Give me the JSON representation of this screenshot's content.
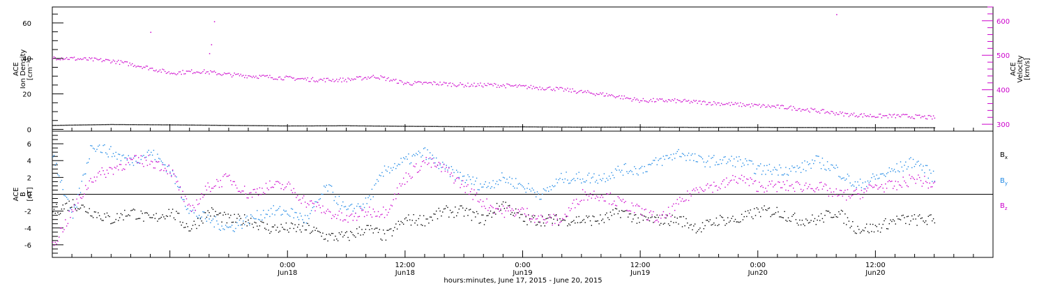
{
  "chart_data": [
    {
      "type": "scatter",
      "panel": "ace-density-velocity",
      "ylabel": [
        "ACE",
        "Ion Density",
        "[cm⁻³]"
      ],
      "ylim": [
        -1,
        69
      ],
      "yticks": [
        0,
        20,
        40,
        60
      ],
      "ylabel_right": [
        "ACE",
        "Velocity",
        "[km/s]"
      ],
      "ylim_right": [
        280,
        640
      ],
      "yticks_right": [
        300,
        400,
        500,
        600
      ],
      "series": [
        {
          "name": "",
          "axis": "left",
          "color": "#000000",
          "x": [
            0,
            6,
            12,
            18,
            24,
            30,
            36,
            42,
            48,
            54,
            60,
            66,
            72,
            78,
            84,
            90
          ],
          "y": [
            2.5,
            3.0,
            2.8,
            2.5,
            2.2,
            2.3,
            2.0,
            1.8,
            1.7,
            1.5,
            1.5,
            1.4,
            1.4,
            1.3,
            1.2,
            1.2
          ]
        },
        {
          "name": "",
          "axis": "right",
          "color": "#cc00cc",
          "x": [
            0,
            3,
            6,
            9,
            12,
            15,
            18,
            21,
            24,
            27,
            30,
            33,
            36,
            39,
            42,
            45,
            48,
            51,
            54,
            57,
            60,
            63,
            66,
            69,
            72,
            75,
            78,
            81,
            84,
            87,
            90
          ],
          "y": [
            495,
            490,
            485,
            470,
            450,
            455,
            445,
            440,
            435,
            430,
            430,
            440,
            420,
            420,
            415,
            415,
            410,
            405,
            395,
            385,
            370,
            370,
            365,
            360,
            355,
            350,
            340,
            330,
            325,
            325,
            320
          ]
        }
      ],
      "outliers": [
        {
          "x": 10,
          "y": 55
        },
        {
          "x": 16.5,
          "y": 61
        },
        {
          "x": 16,
          "y": 43
        },
        {
          "x": 16.2,
          "y": 48
        },
        {
          "x": 80,
          "y": 65
        }
      ]
    },
    {
      "type": "scatter",
      "panel": "ace-b",
      "ylabel": [
        "ACE",
        "B",
        "[nT]"
      ],
      "ylim": [
        -7.5,
        7.5
      ],
      "yticks": [
        -6,
        -4,
        -2,
        0,
        2,
        4,
        6
      ],
      "series": [
        {
          "name": "B",
          "sub": "x",
          "color": "#000000",
          "x": [
            0,
            2,
            4,
            6,
            8,
            10,
            12,
            14,
            16,
            18,
            20,
            22,
            24,
            26,
            28,
            30,
            32,
            34,
            36,
            38,
            40,
            42,
            44,
            46,
            48,
            50,
            52,
            54,
            56,
            58,
            60,
            62,
            64,
            66,
            68,
            70,
            72,
            74,
            76,
            78,
            80,
            82,
            84,
            86,
            88,
            90
          ],
          "y": [
            -2,
            -1,
            -2,
            -3,
            -2,
            -3,
            -2,
            -4,
            -2,
            -3,
            -3,
            -4,
            -4,
            -4,
            -5,
            -5,
            -4,
            -5,
            -3,
            -3,
            -2,
            -2,
            -3,
            -1,
            -3,
            -3,
            -3,
            -3,
            -3,
            -2,
            -3,
            -3,
            -3,
            -4,
            -3,
            -3,
            -2,
            -2,
            -3,
            -3,
            -2,
            -4,
            -4,
            -3,
            -3,
            -3
          ]
        },
        {
          "name": "B",
          "sub": "y",
          "color": "#1e88e5",
          "x": [
            0,
            2,
            4,
            6,
            8,
            10,
            12,
            14,
            16,
            18,
            20,
            22,
            24,
            26,
            28,
            30,
            32,
            34,
            36,
            38,
            40,
            42,
            44,
            46,
            48,
            50,
            52,
            54,
            56,
            58,
            60,
            62,
            64,
            66,
            68,
            70,
            72,
            74,
            76,
            78,
            80,
            82,
            84,
            86,
            88,
            90
          ],
          "y": [
            5,
            -3,
            6,
            5,
            4,
            5,
            3,
            -2,
            -3,
            -4,
            -3,
            -2,
            -2,
            -3,
            1,
            -2,
            -1,
            3,
            4,
            5,
            3,
            2,
            1,
            2,
            1,
            0,
            2,
            2,
            2,
            3,
            3,
            4,
            5,
            4,
            4,
            4,
            3,
            3,
            3,
            4,
            3,
            1,
            2,
            3,
            4,
            2
          ]
        },
        {
          "name": "B",
          "sub": "z",
          "color": "#cc00cc",
          "x": [
            0,
            2,
            4,
            6,
            8,
            10,
            12,
            14,
            16,
            18,
            20,
            22,
            24,
            26,
            28,
            30,
            32,
            34,
            36,
            38,
            40,
            42,
            44,
            46,
            48,
            50,
            52,
            54,
            56,
            58,
            60,
            62,
            64,
            66,
            68,
            70,
            72,
            74,
            76,
            78,
            80,
            82,
            84,
            86,
            88,
            90
          ],
          "y": [
            -6,
            -2,
            2,
            3,
            4,
            4,
            3,
            -2,
            1,
            2,
            0,
            1,
            1,
            -1,
            -2,
            -3,
            -2,
            -2,
            2,
            4,
            3,
            1,
            -1,
            -2,
            -2,
            -3,
            -3,
            0,
            0,
            -1,
            -2,
            -3,
            -1,
            1,
            1,
            2,
            1,
            1,
            1,
            1,
            0,
            0,
            1,
            1,
            2,
            1
          ]
        }
      ],
      "zero_line": true
    }
  ],
  "x_axis": {
    "range_hours": [
      0,
      96
    ],
    "ticks": [
      {
        "h": 24,
        "time": "0:00",
        "date": "Jun18"
      },
      {
        "h": 36,
        "time": "12:00",
        "date": "Jun18"
      },
      {
        "h": 48,
        "time": "0:00",
        "date": "Jun19"
      },
      {
        "h": 60,
        "time": "12:00",
        "date": "Jun19"
      },
      {
        "h": 72,
        "time": "0:00",
        "date": "Jun20"
      },
      {
        "h": 84,
        "time": "12:00",
        "date": "Jun20"
      }
    ],
    "label": "hours:minutes, June 17, 2015 - June 20, 2015"
  }
}
